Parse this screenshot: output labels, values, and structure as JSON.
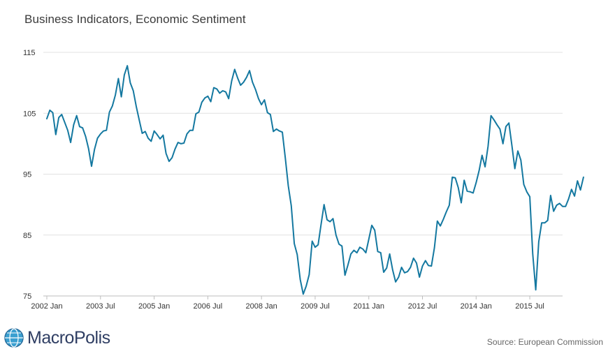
{
  "header": {
    "title": "Business Indicators, Economic Sentiment"
  },
  "footer": {
    "logo_text": "MacroPolis",
    "source": "Source: European Commission"
  },
  "colors": {
    "line": "#1478a0",
    "grid": "#e1e1e1",
    "axis": "#bdbdbd"
  },
  "chart_data": {
    "type": "line",
    "title": "Business Indicators, Economic Sentiment",
    "xlabel": "",
    "ylabel": "",
    "ylim": [
      75,
      115
    ],
    "yticks": [
      75,
      85,
      95,
      105,
      115
    ],
    "xticks": [
      {
        "i": 0,
        "label": "2002 Jan"
      },
      {
        "i": 18,
        "label": "2003 Jul"
      },
      {
        "i": 36,
        "label": "2005 Jan"
      },
      {
        "i": 54,
        "label": "2006 Jul"
      },
      {
        "i": 72,
        "label": "2008 Jan"
      },
      {
        "i": 90,
        "label": "2009 Jul"
      },
      {
        "i": 108,
        "label": "2011 Jan"
      },
      {
        "i": 126,
        "label": "2012 Jul"
      },
      {
        "i": 144,
        "label": "2014 Jan"
      },
      {
        "i": 162,
        "label": "2015 Jul"
      }
    ],
    "start": "2002 Jan",
    "series": [
      {
        "name": "Economic Sentiment",
        "values": [
          104.1,
          105.5,
          105.1,
          101.5,
          104.3,
          104.8,
          103.5,
          102.2,
          100.2,
          103.1,
          104.6,
          102.8,
          102.6,
          101.2,
          99.2,
          96.3,
          99.1,
          100.9,
          101.6,
          102.1,
          102.2,
          105.2,
          106.2,
          108.0,
          110.7,
          107.7,
          111.3,
          112.8,
          110.0,
          108.7,
          106.1,
          103.9,
          101.7,
          102.0,
          100.9,
          100.4,
          102.1,
          101.5,
          100.8,
          101.4,
          98.4,
          97.1,
          97.7,
          99.1,
          100.2,
          100.0,
          100.1,
          101.6,
          102.2,
          102.2,
          104.9,
          105.2,
          106.8,
          107.5,
          107.8,
          106.9,
          109.2,
          109.0,
          108.3,
          108.7,
          108.5,
          107.4,
          110.3,
          112.2,
          110.8,
          109.6,
          110.1,
          110.9,
          112.0,
          110.1,
          108.9,
          107.4,
          106.4,
          107.2,
          105.1,
          104.8,
          102.0,
          102.4,
          102.1,
          101.9,
          97.6,
          93.1,
          89.8,
          83.6,
          81.8,
          77.7,
          75.3,
          76.6,
          78.5,
          84.0,
          83.0,
          83.4,
          86.8,
          90.0,
          87.5,
          87.2,
          87.7,
          85.0,
          83.5,
          83.2,
          78.4,
          80.1,
          81.9,
          82.5,
          82.1,
          83.0,
          82.7,
          82.1,
          84.3,
          86.6,
          85.8,
          82.3,
          82.1,
          78.9,
          79.6,
          81.9,
          79.3,
          77.3,
          78.1,
          79.7,
          78.8,
          79.0,
          79.7,
          81.2,
          80.4,
          78.1,
          79.9,
          80.8,
          80.0,
          79.9,
          82.9,
          87.3,
          86.5,
          87.6,
          88.8,
          89.9,
          94.5,
          94.4,
          92.8,
          90.3,
          94.0,
          92.2,
          92.1,
          91.9,
          93.6,
          95.6,
          98.1,
          96.2,
          99.6,
          104.6,
          103.9,
          103.1,
          102.4,
          100.0,
          102.8,
          103.4,
          99.7,
          95.9,
          98.8,
          97.3,
          93.3,
          92.1,
          91.3,
          81.9,
          76.0,
          83.9,
          87.0,
          87.0,
          87.4,
          91.5,
          88.9,
          89.9,
          90.2,
          89.7,
          89.7,
          90.9,
          92.5,
          91.4,
          93.9,
          92.4,
          94.5
        ]
      }
    ]
  }
}
